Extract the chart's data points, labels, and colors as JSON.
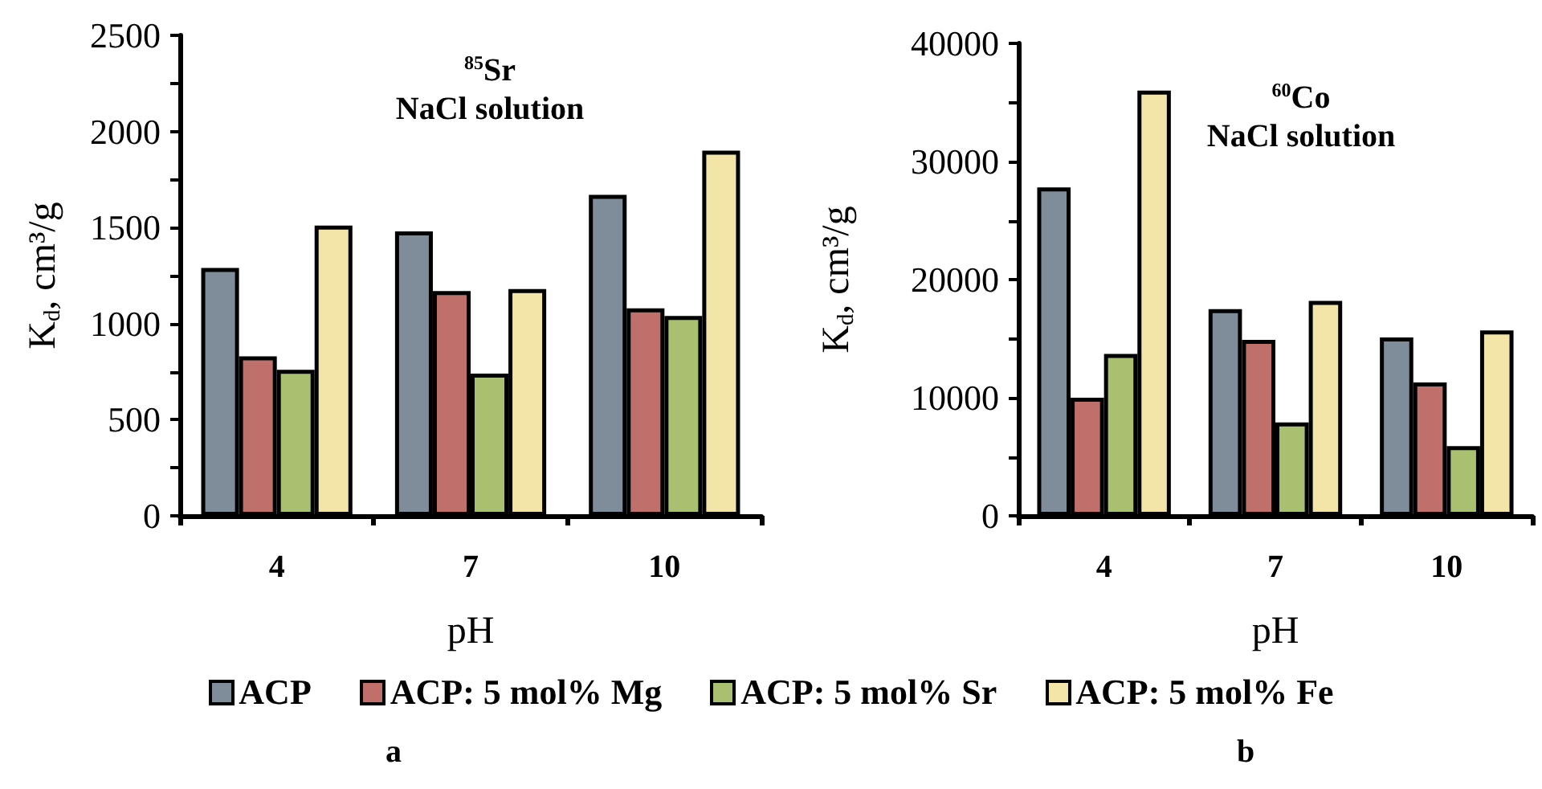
{
  "chart_data": [
    {
      "type": "bar",
      "title": "$^{85}$Sr",
      "subtitle": "NaCl solution",
      "xlabel": "pH",
      "ylabel": "K$_{d}$, cm³/g",
      "annotations": [
        "a"
      ],
      "categories": [
        "4",
        "7",
        "10"
      ],
      "series": [
        {
          "name": "ACP",
          "color": "#7f8c99",
          "values": [
            1290,
            1480,
            1670
          ]
        },
        {
          "name": "ACP: 5 mol% Mg",
          "color": "#c0706a",
          "values": [
            830,
            1170,
            1080
          ]
        },
        {
          "name": "ACP: 5 mol% Sr",
          "color": "#a8c070",
          "values": [
            760,
            740,
            1040
          ]
        },
        {
          "name": "ACP: 5 mol% Fe",
          "color": "#f3e4a8",
          "values": [
            1510,
            1180,
            1900
          ]
        }
      ],
      "ylim": [
        0,
        2500
      ],
      "yticks": [
        0,
        {
          "value": 250,
          "label": null
        },
        500,
        {
          "value": 750,
          "label": null
        },
        1000,
        {
          "value": 1250,
          "label": null
        },
        1500,
        {
          "value": 1750,
          "label": null
        },
        2000,
        {
          "value": 2250,
          "label": null
        },
        2500
      ],
      "grid": false,
      "legend": "bottom"
    },
    {
      "type": "bar",
      "title": "$^{60}$Co",
      "subtitle": "NaCl solution",
      "xlabel": "pH",
      "ylabel": "K$_{d}$, cm³/g",
      "annotations": [
        "b"
      ],
      "categories": [
        "4",
        "7",
        "10"
      ],
      "series": [
        {
          "color": "#7f8c99",
          "values": [
            27800,
            17500,
            15100
          ]
        },
        {
          "color": "#c0706a",
          "values": [
            10000,
            14900,
            11300
          ]
        },
        {
          "color": "#a8c070",
          "values": [
            13700,
            7900,
            5900
          ]
        },
        {
          "color": "#f3e4a8",
          "values": [
            36000,
            18200,
            15700
          ]
        }
      ],
      "ylim": [
        0,
        40000
      ],
      "yticks": [
        0,
        {
          "value": 5000,
          "label": null
        },
        10000,
        {
          "value": 15000,
          "label": null
        },
        20000,
        {
          "value": 25000,
          "label": null
        },
        30000,
        {
          "value": 35000,
          "label": null
        },
        40000
      ],
      "grid": false
    }
  ]
}
